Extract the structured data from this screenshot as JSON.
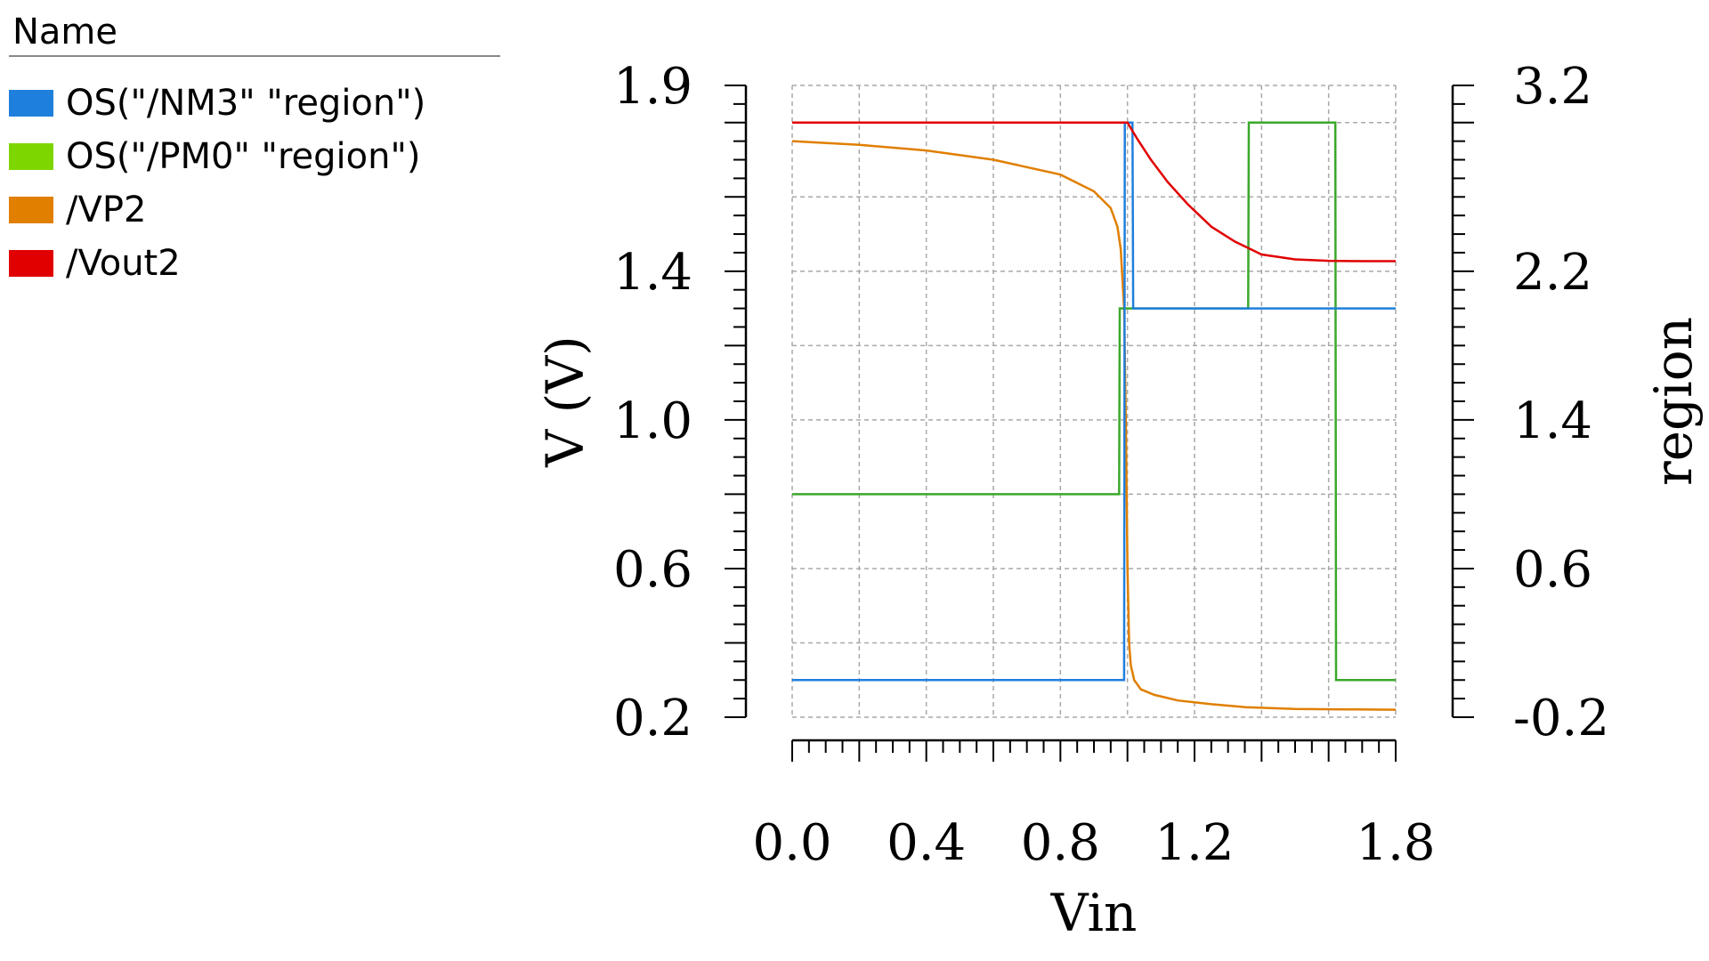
{
  "legend": {
    "header": "Name",
    "items": [
      {
        "label": "OS(\"/NM3\" \"region\")",
        "color": "#1f7fdc"
      },
      {
        "label": "OS(\"/PM0\" \"region\")",
        "color": "#7ed600"
      },
      {
        "label": "/VP2",
        "color": "#e07f00"
      },
      {
        "label": "/Vout2",
        "color": "#e00000"
      }
    ]
  },
  "chart_data": {
    "type": "line",
    "xlabel": "Vin",
    "ylabel": "V (V)",
    "y2label": "region",
    "xlim": [
      0.0,
      1.8
    ],
    "ylim": [
      0.2,
      1.9
    ],
    "y2lim": [
      -0.2,
      3.2
    ],
    "xticks": [
      "0.0",
      "0.4",
      "0.8",
      "1.2",
      "1.8"
    ],
    "yticks": [
      "0.2",
      "0.6",
      "1.0",
      "1.4",
      "1.9"
    ],
    "y2ticks": [
      "-0.2",
      "0.6",
      "1.4",
      "2.2",
      "3.2"
    ],
    "grid": true,
    "colors": {
      "nm3": "#1f7fdc",
      "pm0": "#3aa82a",
      "vp2": "#e07f00",
      "vout2": "#e00000",
      "grid": "#a9a9a9"
    },
    "series": [
      {
        "name": "OS(\"/NM3\" \"region\")",
        "axis": "right",
        "x": [
          0.0,
          0.99,
          0.992,
          1.015,
          1.017,
          1.8
        ],
        "y": [
          0.0,
          0.0,
          3.0,
          3.0,
          2.0,
          2.0
        ]
      },
      {
        "name": "OS(\"/PM0\" \"region\")",
        "axis": "right",
        "x": [
          0.0,
          0.975,
          0.977,
          1.36,
          1.362,
          1.62,
          1.622,
          1.8
        ],
        "y": [
          1.0,
          1.0,
          2.0,
          2.0,
          3.0,
          3.0,
          0.0,
          0.0
        ]
      },
      {
        "name": "/VP2",
        "axis": "left",
        "x": [
          0.0,
          0.2,
          0.4,
          0.6,
          0.8,
          0.9,
          0.95,
          0.97,
          0.98,
          0.99,
          0.995,
          1.0,
          1.005,
          1.01,
          1.02,
          1.04,
          1.08,
          1.15,
          1.25,
          1.35,
          1.5,
          1.65,
          1.8
        ],
        "y": [
          1.75,
          1.74,
          1.725,
          1.7,
          1.66,
          1.615,
          1.57,
          1.52,
          1.46,
          1.3,
          1.0,
          0.6,
          0.4,
          0.34,
          0.3,
          0.275,
          0.26,
          0.245,
          0.235,
          0.227,
          0.222,
          0.221,
          0.22
        ]
      },
      {
        "name": "/Vout2",
        "axis": "left",
        "x": [
          0.0,
          0.99,
          1.0,
          1.03,
          1.07,
          1.12,
          1.18,
          1.25,
          1.32,
          1.4,
          1.5,
          1.6,
          1.7,
          1.8
        ],
        "y": [
          1.8,
          1.8,
          1.8,
          1.755,
          1.7,
          1.64,
          1.58,
          1.52,
          1.48,
          1.445,
          1.432,
          1.428,
          1.427,
          1.427
        ]
      }
    ]
  }
}
